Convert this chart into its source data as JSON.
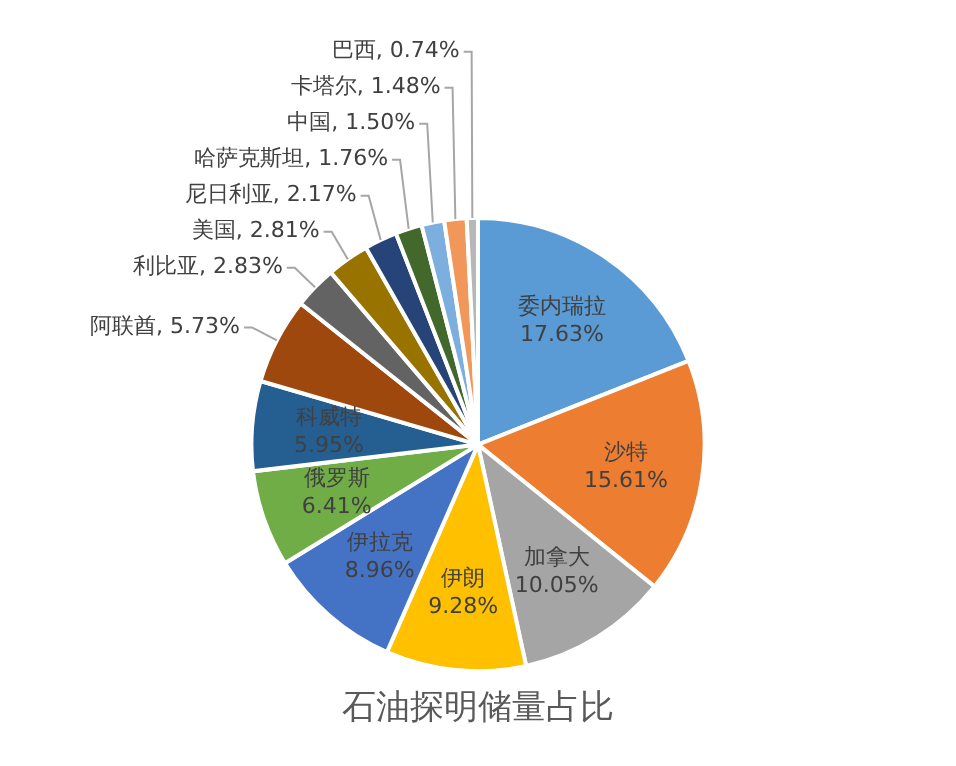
{
  "chart_data": {
    "type": "pie",
    "title": "石油探明储量占比",
    "categories": [
      "委内瑞拉",
      "沙特",
      "加拿大",
      "伊朗",
      "伊拉克",
      "俄罗斯",
      "科威特",
      "阿联酋",
      "利比亚",
      "美国",
      "尼日利亚",
      "哈萨克斯坦",
      "中国",
      "卡塔尔",
      "巴西"
    ],
    "values": [
      17.63,
      15.61,
      10.05,
      9.28,
      8.96,
      6.41,
      5.95,
      5.73,
      2.83,
      2.81,
      2.17,
      1.76,
      1.5,
      1.48,
      0.74
    ],
    "value_labels": [
      "17.63%",
      "15.61%",
      "10.05%",
      "9.28%",
      "8.96%",
      "6.41%",
      "5.95%",
      "5.73%",
      "2.83%",
      "2.81%",
      "2.17%",
      "1.76%",
      "1.50%",
      "1.48%",
      "0.74%"
    ],
    "colors": [
      "#5b9bd5",
      "#ed7d31",
      "#a5a5a5",
      "#ffc000",
      "#4472c4",
      "#70ad47",
      "#255e91",
      "#9e480e",
      "#636363",
      "#997300",
      "#264478",
      "#43682b",
      "#7cafdd",
      "#f1975a",
      "#b7b7b7"
    ],
    "legend": false
  }
}
